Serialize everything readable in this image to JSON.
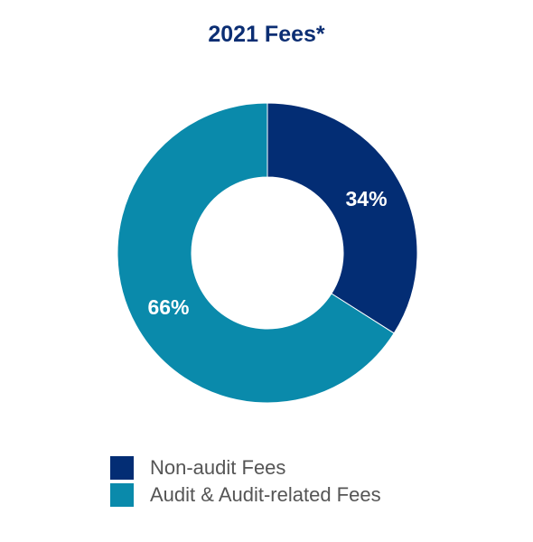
{
  "chart_data": {
    "type": "pie",
    "title": "2021 Fees*",
    "donut": true,
    "slices": [
      {
        "name": "Non-audit Fees",
        "value": 34,
        "label": "34%",
        "color": "#032d74"
      },
      {
        "name": "Audit & Audit-related Fees",
        "value": 66,
        "label": "66%",
        "color": "#0a8aab"
      }
    ],
    "legend_position": "bottom"
  }
}
